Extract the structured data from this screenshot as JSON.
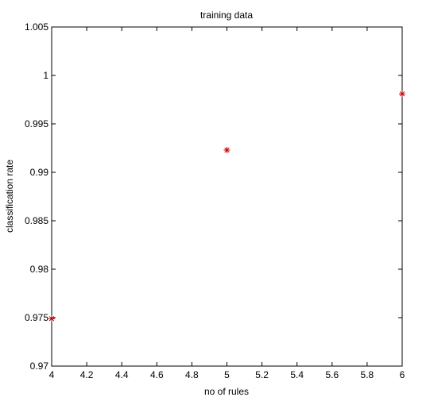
{
  "chart_data": {
    "type": "scatter",
    "title": "training data",
    "xlabel": "no of rules",
    "ylabel": "classification rate",
    "xlim": [
      4,
      6
    ],
    "ylim": [
      0.97,
      1.005
    ],
    "xticks": [
      4,
      4.2,
      4.4,
      4.6,
      4.8,
      5,
      5.2,
      5.4,
      5.6,
      5.8,
      6
    ],
    "xtick_labels": [
      "4",
      "4.2",
      "4.4",
      "4.6",
      "4.8",
      "5",
      "5.2",
      "5.4",
      "5.6",
      "5.8",
      "6"
    ],
    "yticks": [
      0.97,
      0.975,
      0.98,
      0.985,
      0.99,
      0.995,
      1,
      1.005
    ],
    "ytick_labels": [
      "0.97",
      "0.975",
      "0.98",
      "0.985",
      "0.99",
      "0.995",
      "1",
      "1.005"
    ],
    "grid": false,
    "series": [
      {
        "marker": "asterisk",
        "color": "#cc0000",
        "x": [
          4,
          5,
          6
        ],
        "y": [
          0.9749,
          0.9923,
          0.9981
        ]
      }
    ]
  }
}
